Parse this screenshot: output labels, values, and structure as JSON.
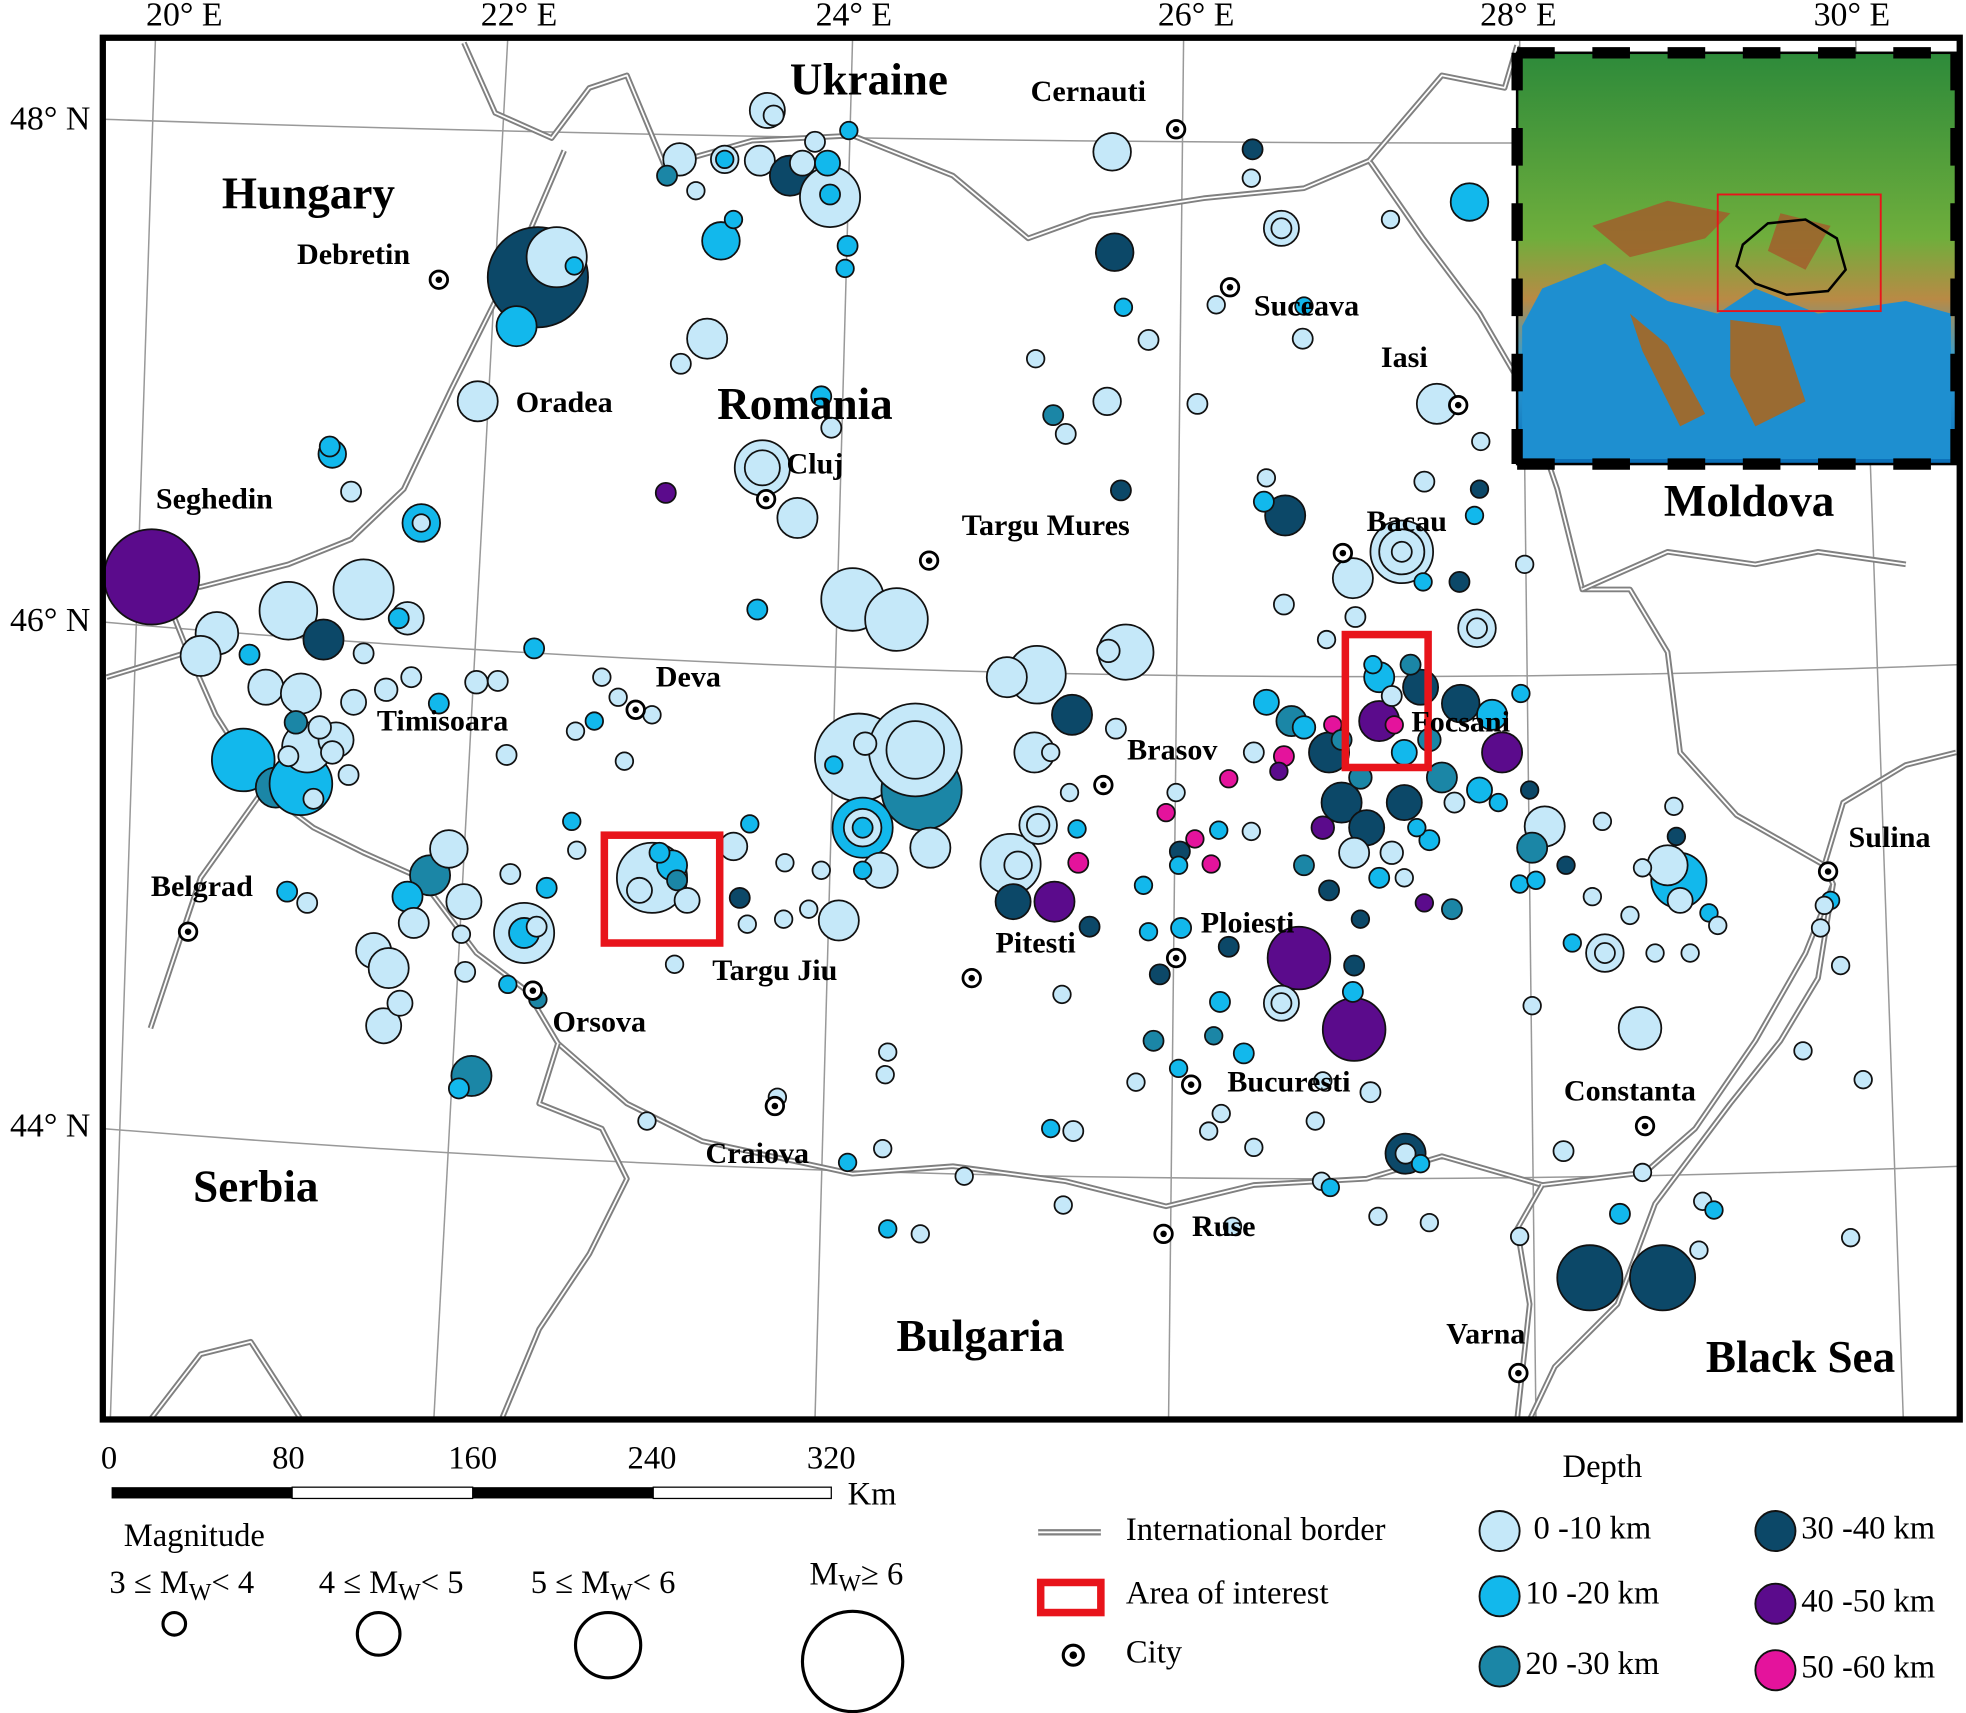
{
  "map": {
    "countries": [
      "Ukraine",
      "Hungary",
      "Romania",
      "Moldova",
      "Serbia",
      "Bulgaria",
      "Black Sea"
    ],
    "cities": [
      "Cernauti",
      "Debretin",
      "Suceava",
      "Iasi",
      "Oradea",
      "Cluj",
      "Seghedin",
      "Targu Mures",
      "Bacau",
      "Deva",
      "Timisoara",
      "Focsani",
      "Brasov",
      "Belgrad",
      "Sulina",
      "Ploiesti",
      "Pitesti",
      "Targu Jiu",
      "Orsova",
      "Bucuresti",
      "Constanta",
      "Craiova",
      "Ruse",
      "Varna"
    ],
    "lon_labels": [
      "20° E",
      "22° E",
      "24° E",
      "26° E",
      "28° E",
      "30° E"
    ],
    "lat_labels": [
      "48° N",
      "46° N",
      "44° N"
    ]
  },
  "scale_bar": {
    "ticks": [
      "0",
      "80",
      "160",
      "240",
      "320"
    ],
    "unit": "Km"
  },
  "legend": {
    "magnitude": {
      "title": "Magnitude",
      "classes": [
        {
          "text": "3 ≤ M",
          "sub": "W",
          "rest": "< 4"
        },
        {
          "text": "4 ≤ M",
          "sub": "W",
          "rest": "< 5"
        },
        {
          "text": "5 ≤ M",
          "sub": "W",
          "rest": "< 6"
        },
        {
          "text": "M",
          "sub": "W",
          "rest": "≥ 6"
        }
      ]
    },
    "symbols": [
      "International border",
      "Area of interest",
      "City"
    ],
    "depth": {
      "title": "Depth",
      "classes": [
        {
          "label": "0 -10 km",
          "color": "#c5e8f9"
        },
        {
          "label": "10 -20 km",
          "color": "#12b8ec"
        },
        {
          "label": "20 -30 km",
          "color": "#1b86a6"
        },
        {
          "label": "30 -40 km",
          "color": "#0c4868"
        },
        {
          "label": "40 -50 km",
          "color": "#5b0b8c"
        },
        {
          "label": "50 -60 km",
          "color": "#e4139c"
        }
      ]
    }
  }
}
